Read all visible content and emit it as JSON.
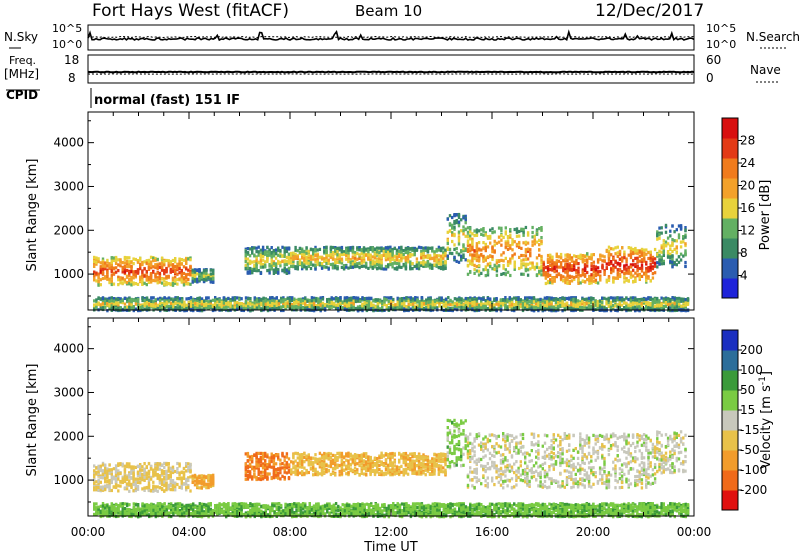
{
  "header": {
    "site_title": "Fort Hays West (fitACF)",
    "beam": "Beam 10",
    "date": "12/Dec/2017"
  },
  "strip_noise": {
    "left_label": "N.Sky",
    "right_label": "N.Search",
    "left_ticks": [
      "10^5",
      "10^0"
    ],
    "right_ticks": [
      "10^5",
      "10^0"
    ]
  },
  "strip_freq": {
    "left_label_line1": "Freq.",
    "left_label_line2": "[MHz]",
    "left_ticks": [
      "18",
      "8"
    ],
    "right_label": "Nave",
    "right_ticks": [
      "60",
      "0"
    ]
  },
  "cpid": {
    "label": "CPID",
    "value": "normal (fast) 151 IF"
  },
  "x_axis": {
    "label": "Time UT",
    "tick_labels": [
      "00:00",
      "04:00",
      "08:00",
      "12:00",
      "16:00",
      "20:00",
      "00:00"
    ]
  },
  "colors": {
    "power_scale": [
      "#1f24d9",
      "#2a5cb0",
      "#3a8a64",
      "#63b063",
      "#e8d23b",
      "#f3a12a",
      "#f07b1c",
      "#e33a16",
      "#d80f0f"
    ],
    "velocity_scale": [
      "#e0100f",
      "#f06a1a",
      "#f29c2b",
      "#e8c24a",
      "#c8c8bc",
      "#7acb43",
      "#3a9a3a",
      "#2c6e9a",
      "#1b2fc0"
    ]
  },
  "chart_data": [
    {
      "type": "heatmap",
      "name": "power",
      "xlabel": "Time UT",
      "ylabel": "Slant Range [km]",
      "xlim_hours": [
        0,
        24
      ],
      "ylim": [
        180,
        4700
      ],
      "y_tick_labels": [
        "1000",
        "2000",
        "3000",
        "4000"
      ],
      "colorbar": {
        "label": "Power [dB]",
        "tick_labels": [
          "4",
          "8",
          "12",
          "16",
          "20",
          "24",
          "28"
        ],
        "range": [
          0,
          32
        ]
      },
      "regions": [
        {
          "t0": 0.2,
          "t1": 4.1,
          "rlo": 780,
          "rhi": 1420,
          "power": 24
        },
        {
          "t0": 4.1,
          "t1": 5.0,
          "rlo": 850,
          "rhi": 1150,
          "power": 12
        },
        {
          "t0": 6.2,
          "t1": 8.0,
          "rlo": 1050,
          "rhi": 1650,
          "power": 14
        },
        {
          "t0": 8.0,
          "t1": 14.2,
          "rlo": 1150,
          "rhi": 1650,
          "power": 16
        },
        {
          "t0": 14.2,
          "t1": 15.0,
          "rlo": 1300,
          "rhi": 2400,
          "power": 14
        },
        {
          "t0": 15.0,
          "t1": 18.0,
          "rlo": 1000,
          "rhi": 2100,
          "power": 20
        },
        {
          "t0": 18.0,
          "t1": 20.5,
          "rlo": 820,
          "rhi": 1500,
          "power": 26
        },
        {
          "t0": 20.5,
          "t1": 22.5,
          "rlo": 850,
          "rhi": 1650,
          "power": 26
        },
        {
          "t0": 22.5,
          "t1": 23.7,
          "rlo": 1200,
          "rhi": 2150,
          "power": 14
        },
        {
          "t0": 0.2,
          "t1": 23.8,
          "rlo": 200,
          "rhi": 500,
          "power": 14
        }
      ]
    },
    {
      "type": "heatmap",
      "name": "velocity",
      "xlabel": "Time UT",
      "ylabel": "Slant Range [km]",
      "xlim_hours": [
        0,
        24
      ],
      "ylim": [
        180,
        4700
      ],
      "y_tick_labels": [
        "1000",
        "2000",
        "3000",
        "4000"
      ],
      "colorbar": {
        "label": "Velocity [m s^-1]",
        "tick_labels": [
          "-200",
          "-100",
          "-50",
          "-15",
          "15",
          "50",
          "100",
          "200"
        ]
      },
      "regions": [
        {
          "t0": 0.2,
          "t1": 4.1,
          "rlo": 780,
          "rhi": 1420,
          "velocity": -20
        },
        {
          "t0": 4.1,
          "t1": 5.0,
          "rlo": 850,
          "rhi": 1150,
          "velocity": -60
        },
        {
          "t0": 6.2,
          "t1": 8.0,
          "rlo": 1050,
          "rhi": 1650,
          "velocity": -110
        },
        {
          "t0": 8.0,
          "t1": 14.2,
          "rlo": 1150,
          "rhi": 1650,
          "velocity": -40
        },
        {
          "t0": 14.2,
          "t1": 15.0,
          "rlo": 1300,
          "rhi": 2400,
          "velocity": 30
        },
        {
          "t0": 15.0,
          "t1": 22.5,
          "rlo": 850,
          "rhi": 2100,
          "velocity": 0
        },
        {
          "t0": 22.5,
          "t1": 23.7,
          "rlo": 1200,
          "rhi": 2150,
          "velocity": 0
        },
        {
          "t0": 0.2,
          "t1": 23.8,
          "rlo": 200,
          "rhi": 500,
          "velocity": 40
        }
      ]
    }
  ]
}
